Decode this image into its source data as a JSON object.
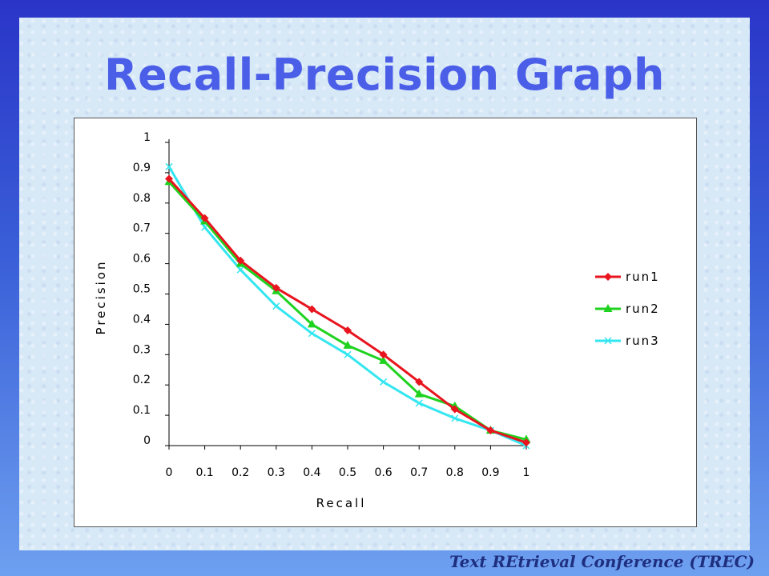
{
  "slide": {
    "title": "Recall-Precision Graph",
    "footer": "Text REtrieval Conference (TREC)"
  },
  "chart_data": {
    "type": "line",
    "title": "",
    "xlabel": "Recall",
    "ylabel": "Precision",
    "x": [
      0,
      0.1,
      0.2,
      0.3,
      0.4,
      0.5,
      0.6,
      0.7,
      0.8,
      0.9,
      1
    ],
    "xticks": [
      "0",
      "0.1",
      "0.2",
      "0.3",
      "0.4",
      "0.5",
      "0.6",
      "0.7",
      "0.8",
      "0.9",
      "1"
    ],
    "yticks": [
      "0",
      "0.1",
      "0.2",
      "0.3",
      "0.4",
      "0.5",
      "0.6",
      "0.7",
      "0.8",
      "0.9",
      "1"
    ],
    "xlim": [
      0,
      1
    ],
    "ylim": [
      0,
      1
    ],
    "grid": false,
    "legend_position": "right",
    "series": [
      {
        "name": "run1",
        "color": "#e8141e",
        "marker": "diamond",
        "values": [
          0.88,
          0.75,
          0.61,
          0.52,
          0.45,
          0.38,
          0.3,
          0.21,
          0.12,
          0.05,
          0.01
        ]
      },
      {
        "name": "run2",
        "color": "#1fd21f",
        "marker": "triangle",
        "values": [
          0.87,
          0.74,
          0.6,
          0.51,
          0.4,
          0.33,
          0.28,
          0.17,
          0.13,
          0.05,
          0.02
        ]
      },
      {
        "name": "run3",
        "color": "#33e6f0",
        "marker": "x",
        "values": [
          0.92,
          0.72,
          0.58,
          0.46,
          0.37,
          0.3,
          0.21,
          0.14,
          0.09,
          0.05,
          0.0
        ]
      }
    ]
  }
}
